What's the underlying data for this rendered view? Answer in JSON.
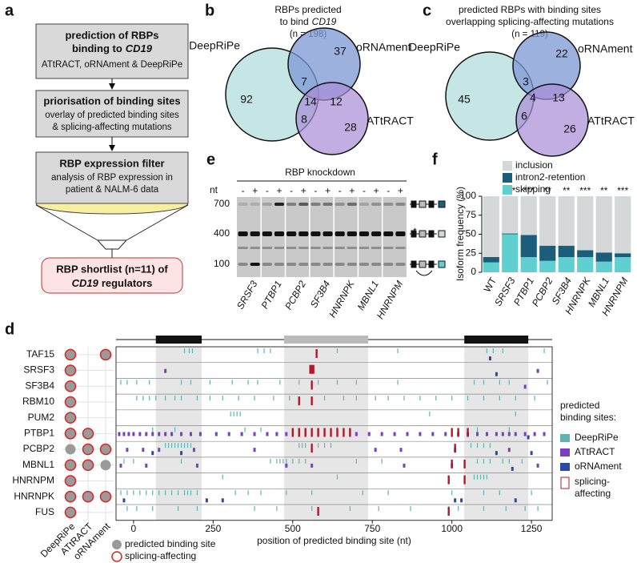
{
  "panel_a": {
    "label": "a",
    "box1": {
      "title": "prediction of RBPs",
      "title2": "binding to",
      "gene": "CD19",
      "text": "ATtRACT, oRNAment & DeepRiPe"
    },
    "box2": {
      "title": "priorisation of binding sites",
      "lines": [
        "overlay of predicted binding sites",
        "& splicing-affecting mutations"
      ]
    },
    "box3": {
      "title": "RBP expression filter",
      "lines": [
        "analysis of RBP expression in",
        "patient & NALM-6 data"
      ]
    },
    "shortlist": {
      "line1": "RBP shortlist (n=11) of",
      "gene": "CD19",
      "line2": "regulators"
    }
  },
  "panel_b": {
    "label": "b",
    "title": [
      "RBPs predicted",
      "to bind"
    ],
    "gene": "CD19",
    "n": "(n = 198)",
    "sets": [
      "DeepRiPe",
      "oRNAment",
      "ATtRACT"
    ],
    "counts": [
      92,
      37,
      28,
      7,
      14,
      12,
      8
    ]
  },
  "panel_c": {
    "label": "c",
    "title": [
      "predicted RBPs with binding sites",
      "overlapping splicing-affecting mutations"
    ],
    "n": "(n = 119)",
    "sets": [
      "DeepRiPe",
      "oRNAment",
      "ATtRACT"
    ],
    "counts": [
      45,
      22,
      26,
      3,
      4,
      13,
      6
    ]
  },
  "panel_e": {
    "label": "e",
    "title": "RBP knockdown",
    "unit": "nt",
    "signs": [
      "-",
      "+"
    ],
    "sizes": [
      700,
      400,
      100
    ],
    "star": "*",
    "genes": [
      "SRSF3",
      "PTBP1",
      "PCBP2",
      "SF3B4",
      "HNRNPK",
      "MBNL1",
      "HNRNPM"
    ]
  },
  "chart_data": [
    {
      "type": "bar",
      "stacked": true,
      "label": "f",
      "ylabel": "Isoform frequency (%)",
      "categories": [
        "WT",
        "SRSF3",
        "PTBP1",
        "PCBP2",
        "SF3B4",
        "HNRNPK",
        "MBNL1",
        "HNRNPM"
      ],
      "italic": [
        false,
        true,
        true,
        true,
        true,
        true,
        true,
        true
      ],
      "ylim": [
        0,
        100
      ],
      "yticks": [
        0,
        25,
        50,
        75,
        100
      ],
      "series": [
        {
          "name": "skipping",
          "color": "#5fcfd0",
          "values": [
            13,
            50,
            20,
            15,
            20,
            20,
            14,
            20
          ]
        },
        {
          "name": "intron2-retention",
          "color": "#1b5e7b",
          "values": [
            7,
            1,
            29,
            20,
            15,
            9,
            12,
            5
          ]
        },
        {
          "name": "inclusion",
          "color": "#d5d8d8",
          "values": [
            80,
            49,
            51,
            65,
            65,
            71,
            74,
            75
          ]
        }
      ],
      "significance": [
        null,
        "***",
        "***",
        "**",
        "**",
        "***",
        "**",
        "***"
      ]
    },
    {
      "type": "strip",
      "label": "d",
      "xlabel": "position of predicted binding site (nt)",
      "xlim": [
        -55,
        1315
      ],
      "xticks": [
        0,
        250,
        500,
        750,
        1000,
        1250
      ],
      "exons": [
        [
          70,
          214
        ],
        [
          473,
          737
        ],
        [
          1039,
          1240
        ]
      ],
      "rbps": [
        "TAF15",
        "SRSF3",
        "SF3B4",
        "RBM10",
        "PUM2",
        "PTBP1",
        "PCBP2",
        "MBNL1",
        "HNRNPM",
        "HNRNPK",
        "FUS"
      ],
      "matrix": [
        [
          2,
          0,
          2
        ],
        [
          2,
          0,
          0
        ],
        [
          2,
          0,
          0
        ],
        [
          2,
          0,
          0
        ],
        [
          2,
          0,
          0
        ],
        [
          2,
          2,
          0
        ],
        [
          1,
          2,
          2
        ],
        [
          2,
          2,
          1
        ],
        [
          2,
          0,
          0
        ],
        [
          2,
          2,
          2
        ],
        [
          2,
          0,
          0
        ]
      ],
      "legend_title": [
        "predicted",
        "binding sites:"
      ],
      "matrix_legend": [
        "predicted binding site",
        "splicing-affecting"
      ],
      "series": [
        {
          "name": "DeepRiPe",
          "color": "#5fb3b3",
          "sites": [
            [
              160,
              175,
              185,
              390,
              410,
              430,
              640,
              830,
              1110,
              1130,
              1160,
              1290
            ],
            [],
            [
              -40,
              -20,
              10,
              50,
              150,
              180,
              240,
              310,
              360,
              390,
              460,
              520,
              560,
              580,
              640,
              700,
              830,
              1070,
              1100,
              1150,
              1180,
              1300
            ],
            [
              10,
              30,
              50,
              70,
              100,
              130,
              150,
              200,
              240,
              280,
              330,
              380,
              440,
              490,
              600,
              660,
              700,
              760,
              800,
              850,
              900,
              950,
              1000,
              1050,
              1100,
              1150,
              1200,
              1260
            ],
            [
              305,
              315,
              325,
              335,
              930,
              1200
            ],
            [
              60,
              130,
              350,
              400,
              640,
              1080,
              1180
            ],
            [
              100,
              110,
              120,
              130,
              140,
              150,
              160,
              170,
              180,
              520,
              530,
              540,
              560,
              580,
              600,
              620,
              1060,
              1080,
              1100,
              1120
            ],
            [
              -30,
              0,
              150,
              430,
              450,
              460,
              470,
              480,
              500,
              520,
              540,
              700,
              780,
              1080,
              1100,
              1120,
              1160,
              1180,
              1220
            ],
            [
              280,
              640,
              1070,
              1080,
              1090,
              1100,
              1110
            ],
            [
              -40,
              -20,
              0,
              20,
              40,
              60,
              80,
              100,
              120,
              140,
              160,
              170,
              180,
              200,
              320,
              360,
              400,
              480,
              560,
              720,
              800,
              1000,
              1100,
              1150,
              1250
            ],
            [
              -20,
              10,
              60,
              140,
              200,
              380,
              450,
              560,
              680,
              770,
              870,
              990,
              1020,
              1100,
              1170,
              1230,
              1270
            ]
          ]
        },
        {
          "name": "ATtRACT",
          "color": "#7b3fbf",
          "sites": [
            [],
            [
              100,
              1270
            ],
            [
              1230
            ],
            [],
            [],
            [
              -45,
              -30,
              -15,
              0,
              20,
              40,
              60,
              80,
              100,
              120,
              150,
              180,
              210,
              260,
              300,
              340,
              380,
              420,
              450,
              480,
              700,
              740,
              780,
              820,
              860,
              900,
              940,
              980,
              1020,
              1050,
              1080,
              1110,
              1140,
              1160,
              1180,
              1200,
              1230,
              1260,
              1290
            ],
            [
              -20,
              30,
              80,
              190,
              380,
              760,
              840,
              1010,
              1180
            ],
            [
              -40,
              40,
              200,
              480,
              560,
              850,
              1000,
              1270
            ],
            [],
            [],
            []
          ]
        },
        {
          "name": "oRNAment",
          "color": "#2b4aa8",
          "sites": [
            [
              1120
            ],
            [
              1140
            ],
            [],
            [],
            [],
            [
              1240
            ],
            [
              60,
              150,
              1140,
              1250
            ],
            [
              1190
            ],
            [],
            [
              -30,
              230,
              280,
              1010,
              1030,
              1200
            ],
            []
          ]
        }
      ],
      "splicing": {
        "label": [
          "splicing-",
          "affecting"
        ],
        "color": "#b2182b",
        "sites": [
          [
            575
          ],
          [
            555,
            560,
            565
          ],
          [
            560
          ],
          [
            520,
            560
          ],
          [],
          [
            500,
            520,
            540,
            560,
            580,
            600,
            620,
            640,
            660,
            680,
            1000,
            1020,
            1050
          ],
          [
            560,
            1010
          ],
          [
            1000,
            1040
          ],
          [
            990,
            1040
          ],
          [],
          [
            580,
            990
          ]
        ]
      }
    }
  ]
}
